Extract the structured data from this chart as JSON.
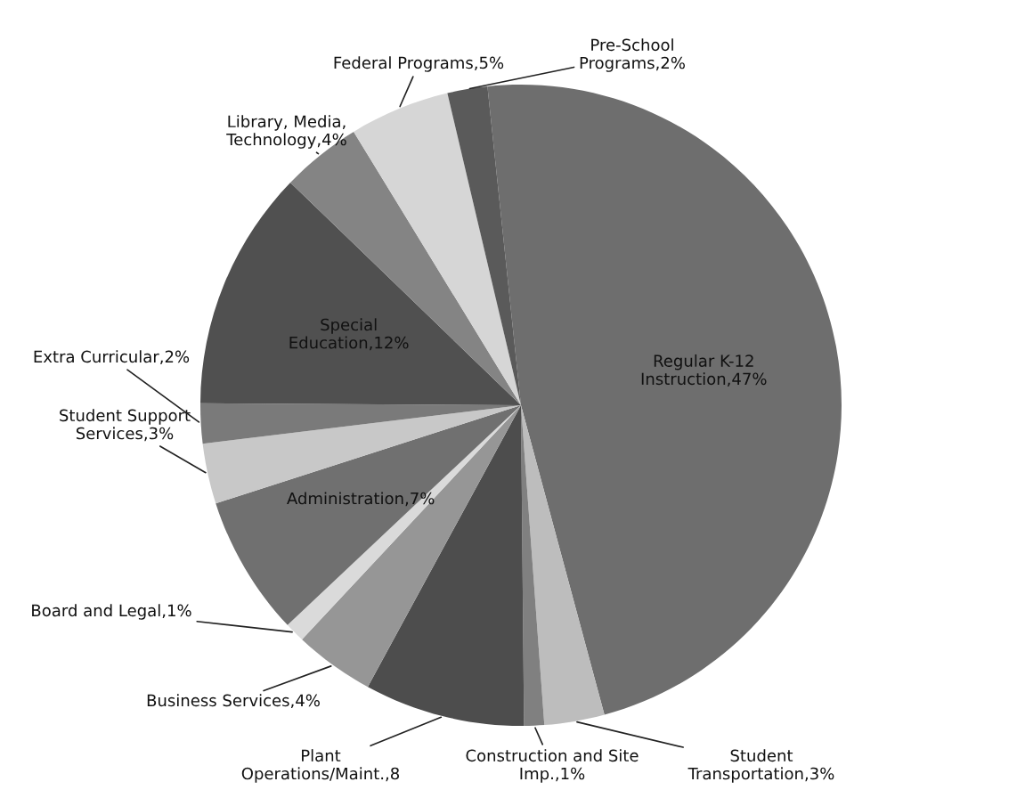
{
  "chart_data": {
    "type": "pie",
    "categories": [
      "Regular K-12\nInstruction",
      "Student\nTransportation",
      "Construction and Site\nImp.",
      "Plant\nOperations/Maint.",
      "Business Services",
      "Board and Legal",
      "Administration",
      "Student Support\nServices",
      "Extra Curricular",
      "Special\nEducation",
      "Library, Media,\nTechnology",
      "Federal Programs",
      "Pre-School\nPrograms"
    ],
    "values": [
      47,
      3,
      1,
      8,
      4,
      1,
      7,
      3,
      2,
      12,
      4,
      5,
      2
    ],
    "value_labels": [
      "47%",
      "3%",
      "1%",
      "8",
      "4%",
      "1%",
      "7%",
      "3%",
      "2%",
      "12%",
      "4%",
      "5%",
      "2%"
    ],
    "colors": [
      "#6e6e6e",
      "#bdbdbd",
      "#808080",
      "#4d4d4d",
      "#969696",
      "#dadada",
      "#707070",
      "#c8c8c8",
      "#7a7a7a",
      "#505050",
      "#848484",
      "#d6d6d6",
      "#5a5a5a"
    ]
  }
}
